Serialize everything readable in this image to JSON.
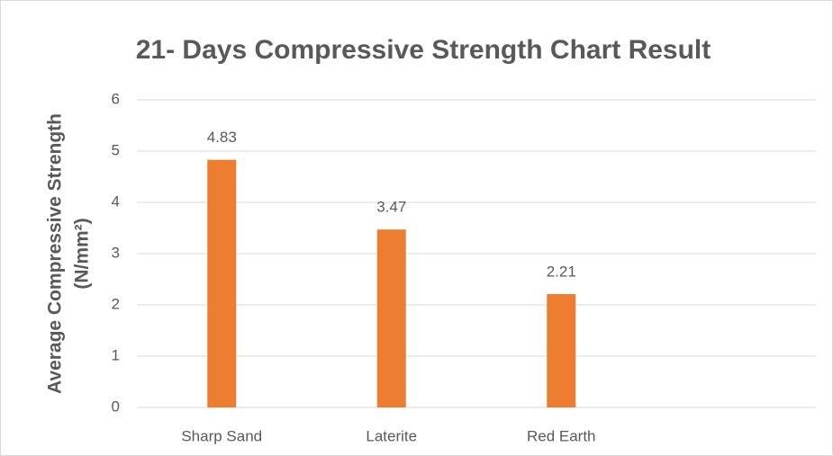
{
  "chart_data": {
    "type": "bar",
    "title": "21- Days Compressive Strength Chart Result",
    "ylabel": [
      "Average Compressive Strength",
      "(N/mm²)"
    ],
    "categories": [
      "Sharp Sand",
      "Laterite",
      "Red Earth",
      null
    ],
    "values": [
      4.83,
      3.47,
      2.21,
      null
    ],
    "color": "#ed7d31",
    "ylim": [
      0,
      6
    ],
    "yticks": [
      0,
      1,
      2,
      3,
      4,
      5,
      6
    ],
    "grid": true
  }
}
